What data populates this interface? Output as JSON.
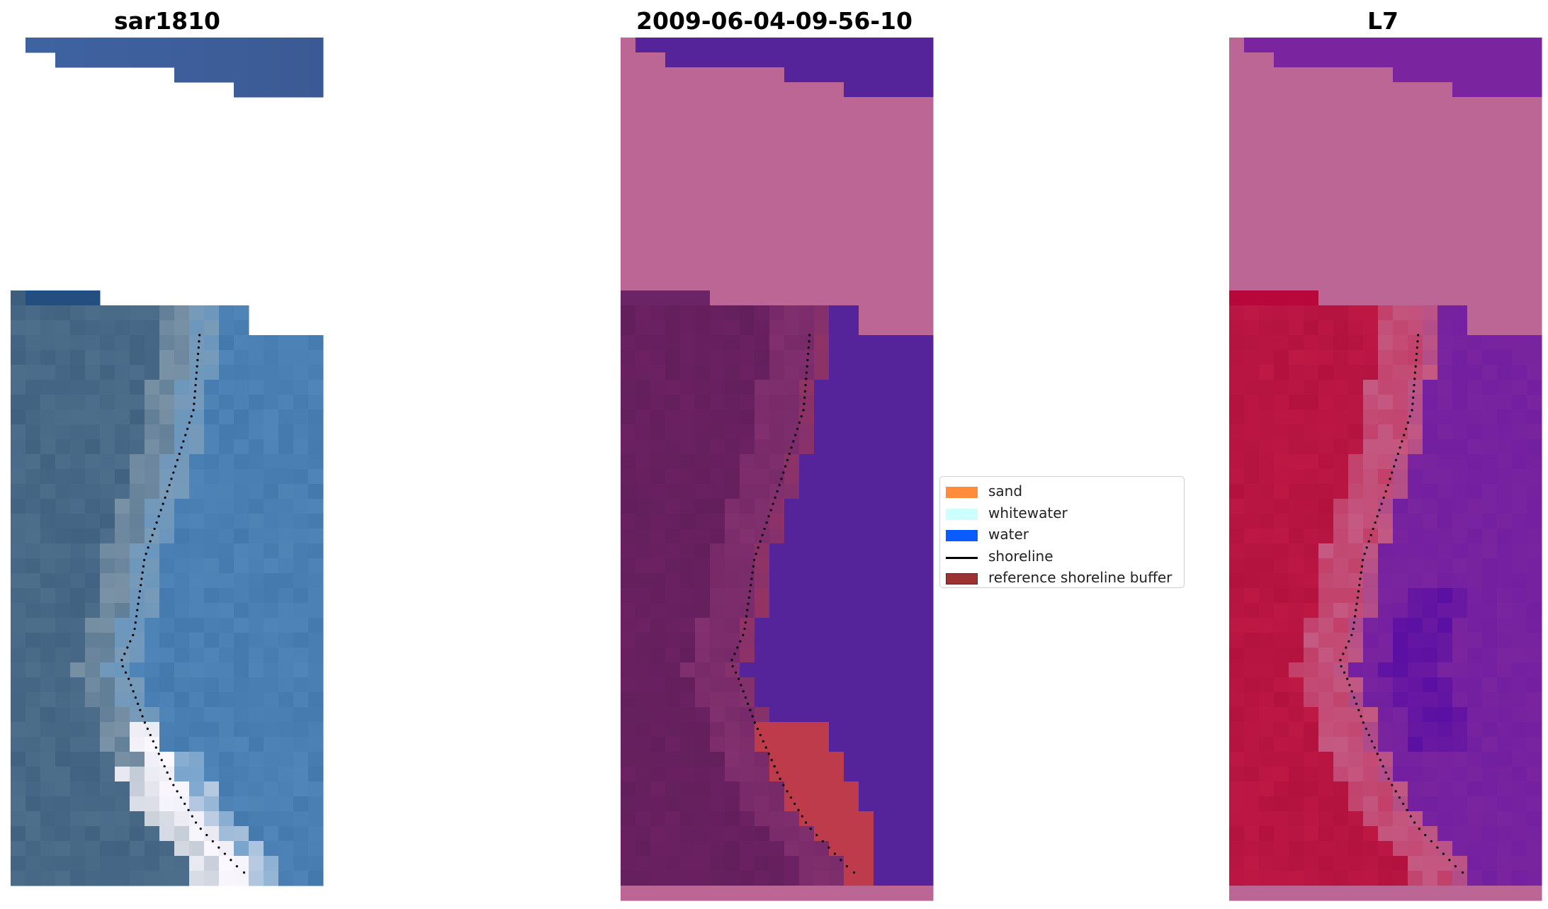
{
  "panels": {
    "left": {
      "title": "sar1810",
      "colors": {
        "upper_water": "#3f63a1",
        "upper_water_dark": "#3b5a94",
        "land": "#4d6f8c",
        "land_dark": "#3e5e7d",
        "sand_light": "#8fa2b1",
        "water": "#4479ae",
        "water_light": "#5b91c2",
        "foam": "#eaeaf2",
        "foam_white": "#fbf8ff",
        "dark_strip": "#224f80"
      }
    },
    "middle": {
      "title": "2009-06-04-09-56-10",
      "colors": {
        "pink": "#bb6695",
        "water": "#55249b",
        "land": "#6b2162",
        "land_dark": "#631f5c",
        "beach": "#82306e",
        "buffer": "#bd3b4a",
        "dark_strip": "#6b2567"
      }
    },
    "right": {
      "title": "L7",
      "colors": {
        "pink": "#bb6695",
        "water": "#7a249f",
        "water_deep": "#5a0fa3",
        "land": "#be1845",
        "land_dark": "#b3123f",
        "beach": "#c45a82",
        "dark_strip": "#b8073b"
      }
    }
  },
  "legend": {
    "items": [
      {
        "label": "sand",
        "color": "#ff8c3a",
        "kind": "patch"
      },
      {
        "label": "whitewater",
        "color": "#ccfffe",
        "kind": "patch"
      },
      {
        "label": "water",
        "color": "#0a5cff",
        "kind": "patch"
      },
      {
        "label": "shoreline",
        "color": "#000000",
        "kind": "line"
      },
      {
        "label": "reference shoreline buffer",
        "color": "#9b3334",
        "kind": "patch"
      }
    ]
  }
}
